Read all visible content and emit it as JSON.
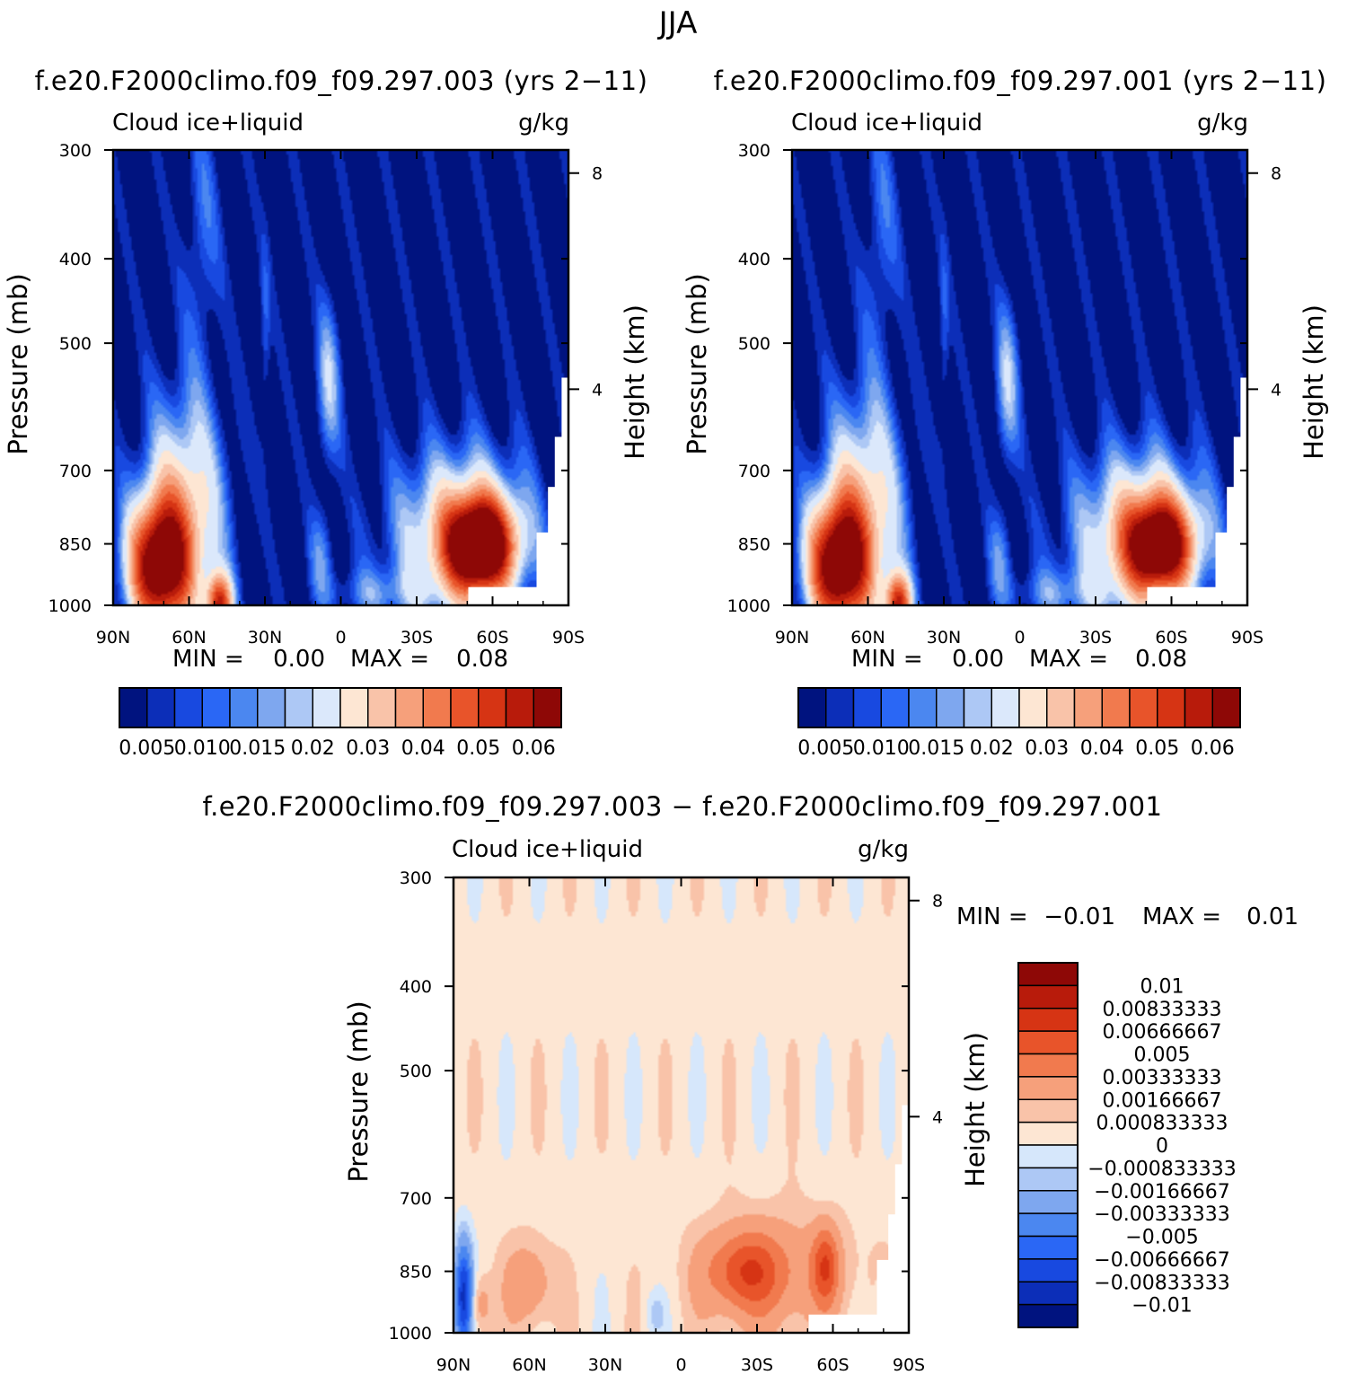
{
  "figure": {
    "season": "JJA",
    "diff_title": "f.e20.F2000climo.f09_f09.297.003 − f.e20.F2000climo.f09_f09.297.001"
  },
  "colors": {
    "abs_palette": [
      "#00137f",
      "#0c2eb8",
      "#1849e0",
      "#2a67f5",
      "#4b87f0",
      "#7ea7ef",
      "#adc8f5",
      "#dbe8fb",
      "#fde6d3",
      "#f9c3a9",
      "#f6a07b",
      "#f17a4e",
      "#e8542a",
      "#d63414",
      "#b81b0b",
      "#8e0806"
    ],
    "diff_palette": [
      "#00137f",
      "#0c2eb8",
      "#1849e0",
      "#2a67f5",
      "#4b87f0",
      "#7ea7ef",
      "#adc8f5",
      "#d6e7fb",
      "#fde6d3",
      "#f9c3a9",
      "#f6a07b",
      "#f17a4e",
      "#e8542a",
      "#d63414",
      "#b81b0b",
      "#8e0806"
    ]
  },
  "chart_data": [
    {
      "type": "heatmap",
      "name": "left",
      "case_title": "f.e20.F2000climo.f09_f09.297.003 (yrs 2−11)",
      "variable": "Cloud ice+liquid",
      "units": "g/kg",
      "ylabel": "Pressure (mb)",
      "ylabel_right": "Height (km)",
      "x_ticks": [
        "90N",
        "60N",
        "30N",
        "0",
        "30S",
        "60S",
        "90S"
      ],
      "y_ticks": [
        "300",
        "400",
        "500",
        "700",
        "850",
        "1000"
      ],
      "height_ticks": [
        "8",
        "4"
      ],
      "min_label": "MIN =",
      "min_value": "0.00",
      "max_label": "MAX =",
      "max_value": "0.08",
      "colorbar_levels": [
        "0.005",
        "0.010",
        "0.015",
        "0.02",
        "0.03",
        "0.04",
        "0.05",
        "0.06"
      ],
      "features": [
        {
          "lat": 70,
          "p": 890,
          "value": 0.06
        },
        {
          "lat": 50,
          "p": 1000,
          "value": 0.06
        },
        {
          "lat": -55,
          "p": 850,
          "value": 0.065
        },
        {
          "lat": 5,
          "p": 550,
          "value": 0.015
        }
      ]
    },
    {
      "type": "heatmap",
      "name": "right",
      "case_title": "f.e20.F2000climo.f09_f09.297.001 (yrs 2−11)",
      "variable": "Cloud ice+liquid",
      "units": "g/kg",
      "ylabel": "Pressure (mb)",
      "ylabel_right": "Height (km)",
      "x_ticks": [
        "90N",
        "60N",
        "30N",
        "0",
        "30S",
        "60S",
        "90S"
      ],
      "y_ticks": [
        "300",
        "400",
        "500",
        "700",
        "850",
        "1000"
      ],
      "height_ticks": [
        "8",
        "4"
      ],
      "min_label": "MIN =",
      "min_value": "0.00",
      "max_label": "MAX =",
      "max_value": "0.08",
      "colorbar_levels": [
        "0.005",
        "0.010",
        "0.015",
        "0.02",
        "0.03",
        "0.04",
        "0.05",
        "0.06"
      ],
      "features": [
        {
          "lat": 70,
          "p": 890,
          "value": 0.06
        },
        {
          "lat": 50,
          "p": 1000,
          "value": 0.06
        },
        {
          "lat": -55,
          "p": 850,
          "value": 0.055
        },
        {
          "lat": 5,
          "p": 550,
          "value": 0.015
        }
      ]
    },
    {
      "type": "heatmap",
      "name": "difference",
      "variable": "Cloud ice+liquid",
      "units": "g/kg",
      "ylabel": "Pressure (mb)",
      "ylabel_right": "Height (km)",
      "x_ticks": [
        "90N",
        "60N",
        "30N",
        "0",
        "30S",
        "60S",
        "90S"
      ],
      "y_ticks": [
        "300",
        "400",
        "500",
        "700",
        "850",
        "1000"
      ],
      "height_ticks": [
        "8",
        "4"
      ],
      "min_label": "MIN =",
      "min_value": "−0.01",
      "max_label": "MAX =",
      "max_value": "0.01",
      "colorbar_levels": [
        "0.01",
        "0.00833333",
        "0.00666667",
        "0.005",
        "0.00333333",
        "0.00166667",
        "0.000833333",
        "0",
        "−0.000833333",
        "−0.00166667",
        "−0.00333333",
        "−0.005",
        "−0.00666667",
        "−0.00833333",
        "−0.01"
      ],
      "features": [
        {
          "lat": -25,
          "p": 850,
          "value": 0.005
        },
        {
          "lat": -55,
          "p": 850,
          "value": 0.005
        },
        {
          "lat": 85,
          "p": 900,
          "value": -0.01
        }
      ]
    }
  ]
}
